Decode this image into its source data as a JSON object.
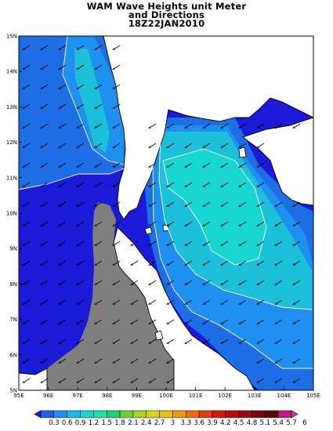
{
  "title": {
    "line1": "WAM Wave Heights unit Meter",
    "line2": "and Directions",
    "line3": "18Z22JAN2010"
  },
  "axes": {
    "lat_labels": [
      "15N",
      "14N",
      "13N",
      "12N",
      "11N",
      "10N",
      "9N",
      "8N",
      "7N",
      "6N",
      "5N"
    ],
    "lon_labels": [
      "95E",
      "96E",
      "97E",
      "98E",
      "99E",
      "100E",
      "101E",
      "102E",
      "103E",
      "104E",
      "105E"
    ],
    "lat_range": [
      5,
      15
    ],
    "lon_range": [
      95,
      105
    ]
  },
  "colorbar": {
    "labels": [
      "0.3",
      "0.6",
      "0.9",
      "1.2",
      "1.5",
      "1.8",
      "2.1",
      "2.4",
      "2.7",
      "3",
      "3.3",
      "3.6",
      "3.9",
      "4.2",
      "4.5",
      "4.8",
      "5.1",
      "5.4",
      "5.7",
      "6"
    ],
    "colors": [
      "#1a1ad8",
      "#1f5fe0",
      "#1e90f0",
      "#1cb8e6",
      "#17d6d2",
      "#1de3a8",
      "#22d070",
      "#6ad23a",
      "#a8d42a",
      "#d4d41c",
      "#e8bf18",
      "#ee9a14",
      "#ea6c10",
      "#e0400e",
      "#d0180e",
      "#b80c10",
      "#9a0a10",
      "#7a0810",
      "#560810",
      "#c01c80",
      "#e02cb4"
    ]
  },
  "field_colors": {
    "land": "#ffffff",
    "missing": "#7f7f7f",
    "band_0_6": "#1a1ad8",
    "band_0_9": "#1e6ee6",
    "band_1_2": "#1e90f0",
    "band_1_5": "#1cc0d8",
    "band_1_8": "#17d6cf",
    "coast": "#000000"
  }
}
